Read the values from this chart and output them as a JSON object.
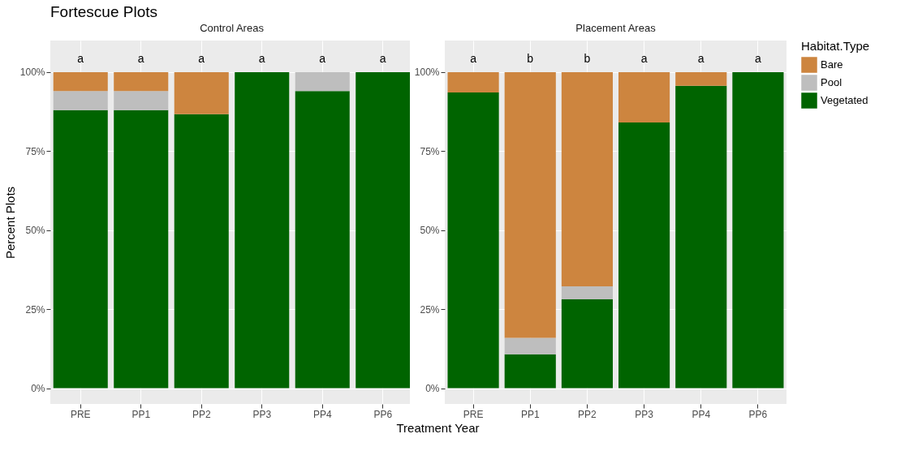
{
  "chart_data": [
    {
      "type": "bar",
      "title": "Fortescue Plots",
      "subtitle": "Control Areas",
      "xlabel": "Treatment Year",
      "ylabel": "Percent Plots",
      "stacked": true,
      "categories": [
        "PRE",
        "PP1",
        "PP2",
        "PP3",
        "PP4",
        "PP6"
      ],
      "series": [
        {
          "color": "#006400",
          "values": [
            88,
            88,
            86.7,
            100,
            94,
            100
          ]
        },
        {
          "color": "#bebebe",
          "values": [
            6,
            6,
            0,
            0,
            6,
            0
          ]
        },
        {
          "color": "#cd853f",
          "values": [
            6,
            6,
            13.3,
            0,
            0,
            0
          ]
        }
      ],
      "ylim": [
        -5,
        110
      ],
      "yticks": [
        {
          "value": 0,
          "label": "0%"
        },
        {
          "value": 25,
          "label": "25%"
        },
        {
          "value": 50,
          "label": "50%"
        },
        {
          "value": 75,
          "label": "75%"
        },
        {
          "value": 100,
          "label": "100%"
        }
      ],
      "grid": true,
      "annotations": [
        "a",
        "a",
        "a",
        "a",
        "a",
        "a"
      ]
    },
    {
      "type": "bar",
      "title": "Placement Areas",
      "stacked": true,
      "categories": [
        "PRE",
        "PP1",
        "PP2",
        "PP3",
        "PP4",
        "PP6"
      ],
      "series": [
        {
          "name": "Vegetated",
          "color": "#006400",
          "values": [
            93.6,
            10.7,
            28.1,
            84.1,
            95.7,
            100
          ]
        },
        {
          "name": "Pool",
          "color": "#bebebe",
          "values": [
            0,
            5.2,
            4.1,
            0,
            0,
            0
          ]
        },
        {
          "name": "Bare",
          "color": "#cd853f",
          "values": [
            6.4,
            84.1,
            67.8,
            15.9,
            4.3,
            0
          ]
        }
      ],
      "ylim": [
        -5,
        110
      ],
      "yticks": [
        {
          "value": 0,
          "label": "0%"
        },
        {
          "value": 25,
          "label": "25%"
        },
        {
          "value": 50,
          "label": "50%"
        },
        {
          "value": 75,
          "label": "75%"
        },
        {
          "value": 100,
          "label": "100%"
        }
      ],
      "grid": true,
      "legend": "right",
      "legend_title": "Habitat.Type",
      "annotations": [
        "a",
        "b",
        "b",
        "a",
        "a",
        "a"
      ]
    }
  ]
}
